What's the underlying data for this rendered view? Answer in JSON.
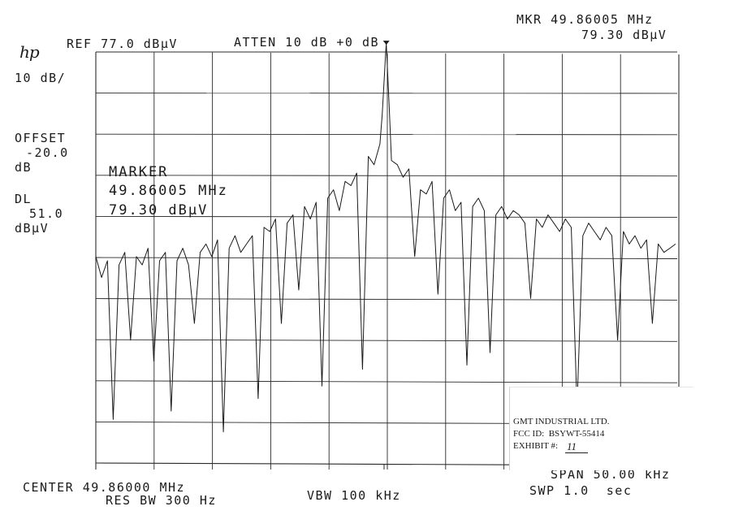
{
  "header": {
    "brand": "hp",
    "ref": "REF 77.0 dBµV",
    "atten": "ATTEN 10 dB +0 dB",
    "mkr_freq": "MKR 49.86005 MHz",
    "mkr_level": "79.30 dBµV"
  },
  "left_panel": {
    "scale": "10 dB/",
    "offset_label": "OFFSET",
    "offset_value": "-20.0",
    "offset_unit": "dB",
    "dl_label": "DL",
    "dl_value": "51.0",
    "dl_unit": "dBµV"
  },
  "marker_box": {
    "label": "MARKER",
    "freq": "49.86005 MHz",
    "level": "79.30 dBµV"
  },
  "footer": {
    "center": "CENTER 49.86000 MHz",
    "res_bw": "RES BW 300 Hz",
    "vbw": "VBW 100 kHz",
    "span": "SPAN 50.00 kHz",
    "sweep": "SWP 1.0  sec"
  },
  "stamp": {
    "company": "GMT INDUSTRIAL LTD.",
    "fcc_id": "FCC ID:  BSYWT-55414",
    "exhibit_label": "EXHIBIT #:",
    "exhibit_value": "11"
  },
  "colors": {
    "trace": "#1a1a1a",
    "grid": "#2a2a2a",
    "background": "#ffffff"
  },
  "chart_data": {
    "type": "line",
    "title": "",
    "xlabel": "",
    "ylabel": "",
    "x_unit": "kHz offset from center",
    "y_unit": "dBµV",
    "xlim": [
      -25,
      25
    ],
    "ylim": [
      -23,
      77
    ],
    "grid": true,
    "reference_level": 77.0,
    "display_line": 51.0,
    "marker": {
      "x": 0.05,
      "y": 79.3
    },
    "series": [
      {
        "x": [
          -25,
          -24.5,
          -24,
          -23.5,
          -23,
          -22.5,
          -22,
          -21.5,
          -21,
          -20.5,
          -20,
          -19.5,
          -19,
          -18.5,
          -18,
          -17.5,
          -17,
          -16.5,
          -16,
          -15.5,
          -15,
          -14.5,
          -14,
          -13.5,
          -13,
          -12.5,
          -12,
          -11.5,
          -11,
          -10.5,
          -10,
          -9.5,
          -9,
          -8.5,
          -8,
          -7.5,
          -7,
          -6.5,
          -6,
          -5.5,
          -5,
          -4.5,
          -4,
          -3.5,
          -3,
          -2.5,
          -2,
          -1.5,
          -1,
          -0.5,
          -0.3,
          0,
          0.05,
          0.3,
          0.5,
          1,
          1.5,
          2,
          2.5,
          3,
          3.5,
          4,
          4.5,
          5,
          5.5,
          6,
          6.5,
          7,
          7.5,
          8,
          8.5,
          9,
          9.5,
          10,
          10.5,
          11,
          11.5,
          12,
          12.5,
          13,
          13.5,
          14,
          14.5,
          15,
          15.5,
          16,
          16.5,
          17,
          17.5,
          18,
          18.5,
          19,
          19.5,
          20,
          20.5,
          21,
          21.5,
          22,
          22.5,
          23,
          23.5,
          24,
          24.5,
          25
        ],
        "values": [
          28,
          23,
          27,
          -11,
          26,
          29,
          8,
          28,
          26,
          30,
          3,
          27,
          29,
          -9,
          27,
          30,
          26,
          12,
          29,
          31,
          28,
          32,
          -14,
          30,
          33,
          29,
          31,
          33,
          -6,
          35,
          34,
          37,
          12,
          36,
          38,
          20,
          40,
          37,
          41,
          -3,
          42,
          44,
          39,
          46,
          45,
          48,
          1,
          52,
          50,
          55,
          62,
          77,
          79,
          64,
          51,
          50,
          47,
          49,
          28,
          44,
          43,
          46,
          19,
          42,
          44,
          39,
          41,
          2,
          40,
          42,
          39,
          5,
          38,
          40,
          37,
          39,
          38,
          36,
          18,
          37,
          35,
          38,
          36,
          34,
          37,
          35,
          -8,
          33,
          36,
          34,
          32,
          35,
          33,
          8,
          34,
          31,
          33,
          30,
          32,
          12,
          31,
          29,
          30,
          31
        ]
      }
    ]
  }
}
